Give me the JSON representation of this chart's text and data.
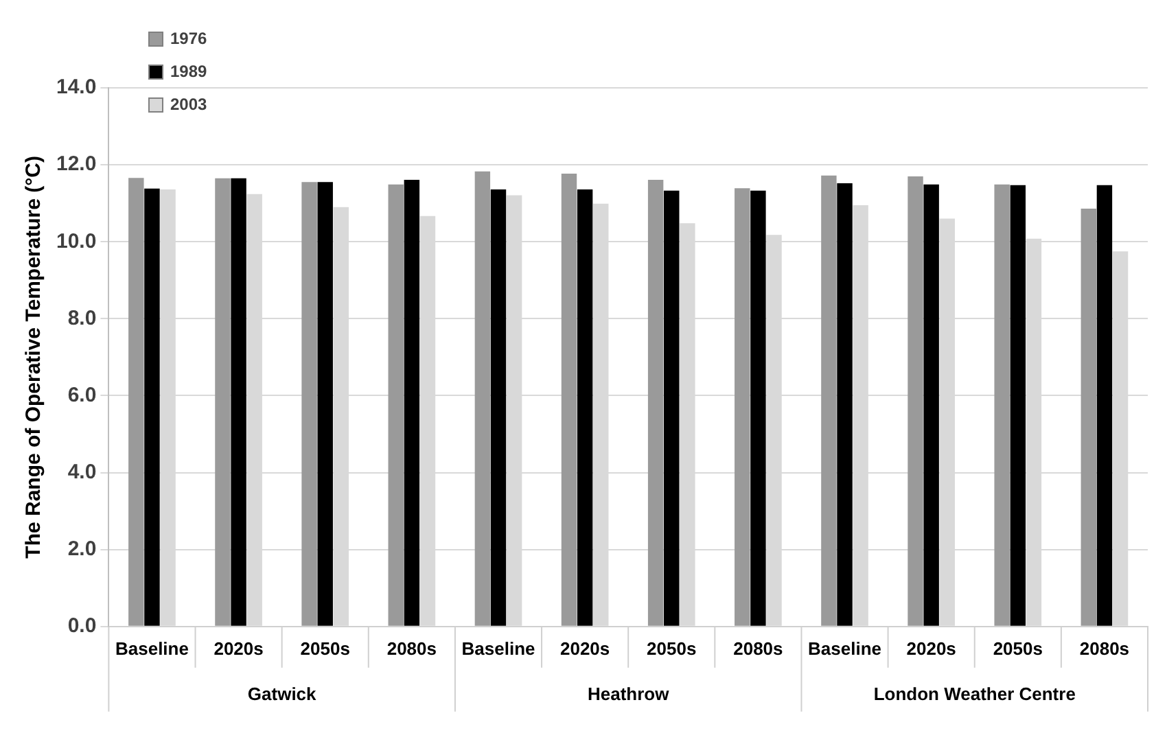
{
  "chart_data": {
    "type": "bar",
    "ylabel": "The Range of Operative Temperature (°C)",
    "categories": [
      "Baseline",
      "2020s",
      "2050s",
      "2080s",
      "Baseline",
      "2020s",
      "2050s",
      "2080s",
      "Baseline",
      "2020s",
      "2050s",
      "2080s"
    ],
    "annotations": [
      "Gatwick",
      "Heathrow",
      "London Weather Centre"
    ],
    "series": [
      {
        "name": "1976",
        "color": "#9a9a9a",
        "values": [
          11.66,
          11.65,
          11.55,
          11.49,
          11.83,
          11.77,
          11.61,
          11.39,
          11.72,
          11.7,
          11.49,
          10.86
        ]
      },
      {
        "name": "1989",
        "color": "#000000",
        "values": [
          11.38,
          11.65,
          11.55,
          11.61,
          11.36,
          11.36,
          11.33,
          11.33,
          11.52,
          11.49,
          11.47,
          11.47
        ]
      },
      {
        "name": "2003",
        "color": "#d9d9d9",
        "values": [
          11.36,
          11.24,
          10.9,
          10.67,
          11.21,
          10.99,
          10.48,
          10.18,
          10.95,
          10.6,
          10.08,
          9.75
        ]
      }
    ],
    "ylim": [
      0,
      14
    ],
    "yticks": [
      {
        "value": 0,
        "label": "0.0"
      },
      {
        "value": 2,
        "label": "2.0"
      },
      {
        "value": 4,
        "label": "4.0"
      },
      {
        "value": 6,
        "label": "6.0"
      },
      {
        "value": 8,
        "label": "8.0"
      },
      {
        "value": 10,
        "label": "10.0"
      },
      {
        "value": 12,
        "label": "12.0"
      },
      {
        "value": 14,
        "label": "14.0"
      }
    ],
    "grid": "y",
    "legend": "top left"
  }
}
